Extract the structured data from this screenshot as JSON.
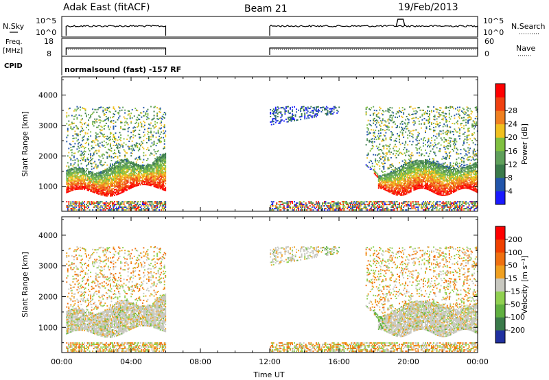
{
  "header": {
    "station": "Adak East (fitACF)",
    "beam": "Beam 21",
    "date": "19/Feb/2013"
  },
  "summary": {
    "nsky_label": "N.Sky",
    "nsearch_label": "N.Search",
    "freq_label_1": "Freq.",
    "freq_label_2": "[MHz]",
    "nave_label": "Nave",
    "cpid_label": "CPID",
    "cpid_text": "normalsound (fast) -157 RF",
    "noise_ticks": [
      "10^5",
      "10^0"
    ],
    "noise_right_ticks": [
      "10^5",
      "10^0"
    ],
    "freq_ticks": [
      "18",
      "8"
    ],
    "nave_ticks": [
      "60",
      "0"
    ]
  },
  "chart_data": [
    {
      "type": "heatmap",
      "name": "power",
      "ylabel": "Slant Range [km]",
      "ylim": [
        180,
        4600
      ],
      "xlim": [
        0,
        24
      ],
      "y_ticks": [
        1000,
        2000,
        3000,
        4000
      ],
      "colorbar": {
        "label": "Power [dB]",
        "ticks": [
          "4",
          "8",
          "12",
          "16",
          "20",
          "24",
          "28"
        ],
        "colors": [
          "#1a1aff",
          "#2255aa",
          "#3a7a4a",
          "#5fa05a",
          "#80c040",
          "#f0c020",
          "#f08020",
          "#f04010",
          "#ff0000"
        ]
      },
      "data_intervals_ut": [
        [
          0.25,
          6.0
        ],
        [
          12.0,
          24.0
        ]
      ],
      "features": [
        {
          "range": [
            700,
            1700
          ],
          "ut": [
            0.25,
            6.0
          ],
          "level": "strong"
        },
        {
          "range": [
            1700,
            3600
          ],
          "ut": [
            0.25,
            6.0
          ],
          "level": "moderate"
        },
        {
          "range": [
            700,
            2200
          ],
          "ut": [
            18.0,
            24.0
          ],
          "level": "strong"
        },
        {
          "range": [
            2200,
            3600
          ],
          "ut": [
            13.0,
            18.5
          ],
          "level": "weak"
        }
      ]
    },
    {
      "type": "heatmap",
      "name": "velocity",
      "ylabel": "Slant Range [km]",
      "xlabel": "Time UT",
      "ylim": [
        180,
        4600
      ],
      "xlim": [
        0,
        24
      ],
      "y_ticks": [
        1000,
        2000,
        3000,
        4000
      ],
      "x_ticks": [
        "00:00",
        "04:00",
        "08:00",
        "12:00",
        "16:00",
        "20:00",
        "00:00"
      ],
      "colorbar": {
        "label": "Velocity [m s⁻¹]",
        "ticks": [
          "200",
          "100",
          "50",
          "15",
          "-15",
          "-50",
          "-100",
          "-200"
        ],
        "colors": [
          "#2030a0",
          "#3a7a4a",
          "#60b040",
          "#90d050",
          "#c8c8c0",
          "#f0a020",
          "#f07010",
          "#f04000",
          "#ff0000"
        ]
      },
      "data_intervals_ut": [
        [
          0.25,
          6.0
        ],
        [
          12.0,
          24.0
        ]
      ]
    }
  ]
}
